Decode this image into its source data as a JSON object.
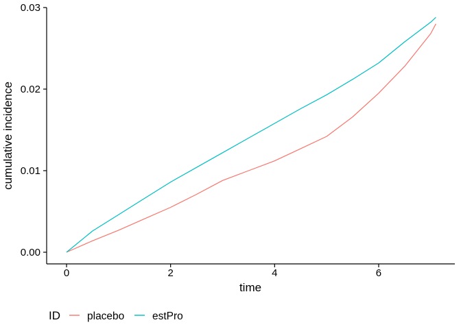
{
  "figure": {
    "background": "#ffffff",
    "axis_color": "#000000",
    "text_color": "#000000"
  },
  "chart_data": {
    "type": "line",
    "title": "",
    "xlabel": "time",
    "ylabel": "cumulative incidence",
    "grid": false,
    "legend_position": "bottom-left",
    "legend_title": "ID",
    "xlim": [
      -0.3824,
      7.464
    ],
    "ylim": [
      -0.00143,
      0.03
    ],
    "x_ticks": [
      0,
      2,
      4,
      6
    ],
    "x_tick_labels": [
      "0",
      "2",
      "4",
      "6"
    ],
    "y_ticks": [
      0,
      0.01,
      0.02,
      0.03
    ],
    "y_tick_labels": [
      "0.00",
      "0.01",
      "0.02",
      "0.03"
    ],
    "x": [
      0,
      0.5,
      1,
      1.5,
      2,
      2.5,
      3,
      3.5,
      4,
      4.5,
      5,
      5.5,
      6,
      6.5,
      7,
      7.1
    ],
    "series": [
      {
        "name": "placebo",
        "color": "#F8766D",
        "values": [
          0,
          0.0014,
          0.0027,
          0.0041,
          0.0055,
          0.0071,
          0.0088,
          0.01,
          0.0112,
          0.0127,
          0.0142,
          0.0166,
          0.0195,
          0.0228,
          0.0268,
          0.028
        ]
      },
      {
        "name": "estPro",
        "color": "#00BFC4",
        "values": [
          0,
          0.0026,
          0.0046,
          0.0066,
          0.0086,
          0.0104,
          0.0122,
          0.014,
          0.0158,
          0.0176,
          0.0193,
          0.0212,
          0.0232,
          0.0258,
          0.0282,
          0.0288
        ]
      }
    ]
  }
}
